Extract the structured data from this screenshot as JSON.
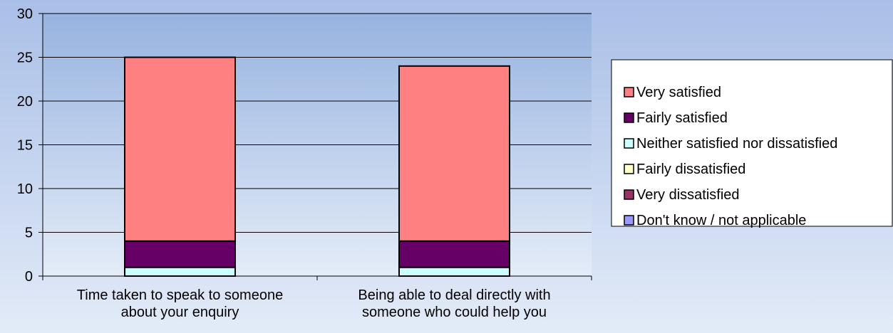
{
  "chart_data": {
    "type": "bar",
    "stacked": true,
    "categories": [
      "Time taken to speak to someone about your enquiry",
      "Being able to deal directly with someone who could help you"
    ],
    "category_lines": [
      [
        "Time taken to speak to someone",
        "about your enquiry"
      ],
      [
        "Being able to deal directly with",
        "someone who could help you"
      ]
    ],
    "series": [
      {
        "name": "Don't know / not applicable",
        "values": [
          0,
          0
        ],
        "color": "#9999ff"
      },
      {
        "name": "Very dissatisfied",
        "values": [
          0,
          0
        ],
        "color": "#993366"
      },
      {
        "name": "Fairly dissatisfied",
        "values": [
          0,
          0
        ],
        "color": "#ffffcc"
      },
      {
        "name": "Neither satisfied nor dissatisfied",
        "values": [
          1,
          1
        ],
        "color": "#ccffff"
      },
      {
        "name": "Fairly satisfied",
        "values": [
          3,
          3
        ],
        "color": "#660066"
      },
      {
        "name": "Very satisfied",
        "values": [
          21,
          20
        ],
        "color": "#ff8080"
      }
    ],
    "legend_order": [
      "Very satisfied",
      "Fairly satisfied",
      "Neither satisfied nor dissatisfied",
      "Fairly dissatisfied",
      "Very dissatisfied",
      "Don't know / not applicable"
    ],
    "ylim": [
      0,
      30
    ],
    "yticks": [
      0,
      5,
      10,
      15,
      20,
      25,
      30
    ],
    "grid": true,
    "legend_position": "right",
    "title": "",
    "xlabel": "",
    "ylabel": ""
  }
}
